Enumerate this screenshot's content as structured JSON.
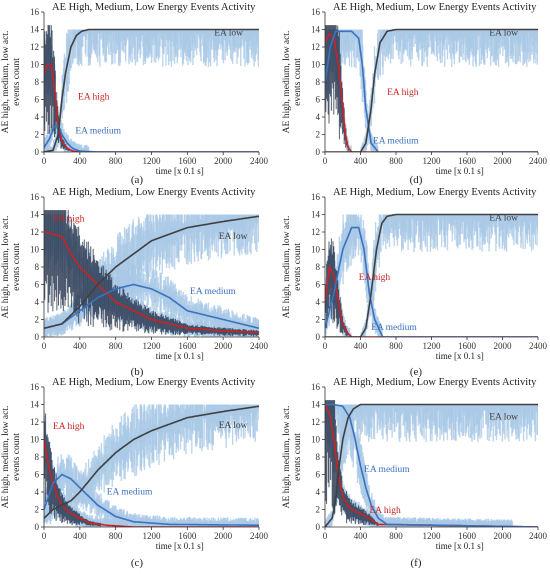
{
  "figure": {
    "panels_order": [
      "a",
      "d",
      "b",
      "e",
      "c",
      "f"
    ]
  },
  "colors": {
    "ea_high": "#cc2222",
    "ea_medium": "#3a72c0",
    "ea_low": "#404040",
    "band_light": "#a8c8e6",
    "noise_dark": "#2a3850",
    "axis": "#333333",
    "tick_text": "#333333"
  },
  "chart_data": [
    {
      "panel": "a",
      "type": "line",
      "caption": "(a)",
      "title": "AE High, Medium, Low Energy Events Activity",
      "xlabel": "time [x 0.1 s]",
      "ylabel": "AE high, medium, low act. events count",
      "xlim": [
        0,
        2400
      ],
      "ylim": [
        0,
        16
      ],
      "xticks": [
        0,
        400,
        800,
        1200,
        1600,
        2000,
        2400
      ],
      "yticks": [
        0,
        2,
        4,
        6,
        8,
        10,
        12,
        14,
        16
      ],
      "series": [
        {
          "name": "EA high",
          "x": [
            0,
            40,
            80,
            120,
            160,
            200,
            260,
            320,
            400,
            600,
            2400
          ],
          "y": [
            9,
            10,
            10,
            7,
            3,
            1.2,
            0.4,
            0.1,
            0,
            0,
            0
          ]
        },
        {
          "name": "EA medium",
          "x": [
            0,
            60,
            120,
            160,
            200,
            260,
            320,
            400,
            600,
            2400
          ],
          "y": [
            0.5,
            1.5,
            3,
            3,
            2,
            1,
            0.4,
            0.1,
            0,
            0
          ]
        },
        {
          "name": "EA low",
          "x": [
            0,
            100,
            160,
            200,
            240,
            300,
            360,
            420,
            500,
            700,
            2400
          ],
          "y": [
            0,
            0.2,
            2,
            6,
            9,
            12,
            13.3,
            13.8,
            14,
            14,
            14
          ]
        }
      ],
      "annotations": [
        {
          "text": "EA low",
          "x": 1900,
          "y": 13.3,
          "series": "EA low"
        },
        {
          "text": "EA high",
          "x": 380,
          "y": 6,
          "series": "EA high"
        },
        {
          "text": "EA medium",
          "x": 350,
          "y": 2.1,
          "series": "EA medium"
        }
      ]
    },
    {
      "panel": "d",
      "type": "line",
      "caption": "(d)",
      "title": "AE High, Medium, Low Energy Events Activity",
      "xlabel": "time [x 0.1 s]",
      "ylabel": "AE high, medium, low act. events count",
      "xlim": [
        0,
        2400
      ],
      "ylim": [
        0,
        16
      ],
      "xticks": [
        0,
        400,
        800,
        1200,
        1600,
        2000,
        2400
      ],
      "yticks": [
        0,
        2,
        4,
        6,
        8,
        10,
        12,
        14,
        16
      ],
      "series": [
        {
          "name": "EA high",
          "x": [
            0,
            50,
            100,
            150,
            200,
            230,
            260,
            300,
            2400
          ],
          "y": [
            12.5,
            13.5,
            13,
            10,
            5,
            2,
            0.5,
            0,
            0
          ]
        },
        {
          "name": "EA medium",
          "x": [
            0,
            60,
            120,
            200,
            300,
            380,
            420,
            460,
            520,
            600,
            2400
          ],
          "y": [
            8,
            12,
            13.8,
            13.8,
            13.8,
            13,
            10,
            5,
            1,
            0,
            0
          ]
        },
        {
          "name": "EA low",
          "x": [
            0,
            400,
            460,
            520,
            560,
            620,
            700,
            800,
            2400
          ],
          "y": [
            0,
            0,
            1,
            5,
            9,
            12.5,
            13.8,
            14,
            14
          ]
        }
      ],
      "annotations": [
        {
          "text": "EA low",
          "x": 1850,
          "y": 13.3,
          "series": "EA low"
        },
        {
          "text": "EA high",
          "x": 700,
          "y": 6.5,
          "series": "EA high"
        },
        {
          "text": "EA medium",
          "x": 540,
          "y": 1,
          "series": "EA medium"
        }
      ]
    },
    {
      "panel": "b",
      "type": "line",
      "caption": "(b)",
      "title": "AE High, Medium, Low Energy Events Activity",
      "xlabel": "time [x 0.1 s]",
      "ylabel": "AE high, medium, low act. events count",
      "xlim": [
        0,
        2400
      ],
      "ylim": [
        0,
        16
      ],
      "xticks": [
        0,
        400,
        800,
        1200,
        1600,
        2000,
        2400
      ],
      "yticks": [
        0,
        2,
        4,
        6,
        8,
        10,
        12,
        14,
        16
      ],
      "series": [
        {
          "name": "EA high",
          "x": [
            0,
            200,
            300,
            400,
            600,
            800,
            1000,
            1200,
            1600,
            2000,
            2400
          ],
          "y": [
            12,
            11.5,
            9.5,
            8,
            6,
            4,
            3,
            2,
            1,
            0.7,
            0.5
          ]
        },
        {
          "name": "EA medium",
          "x": [
            0,
            200,
            400,
            600,
            800,
            1000,
            1200,
            1400,
            1600,
            2000,
            2400
          ],
          "y": [
            1,
            1.5,
            3,
            4.5,
            5.5,
            6,
            5.5,
            4.5,
            3,
            2,
            1
          ]
        },
        {
          "name": "EA low",
          "x": [
            0,
            200,
            400,
            600,
            800,
            1000,
            1200,
            1600,
            2000,
            2400
          ],
          "y": [
            1,
            1.5,
            3.5,
            6,
            8,
            9.5,
            11,
            12.5,
            13.2,
            13.8
          ]
        }
      ],
      "annotations": [
        {
          "text": "EA low",
          "x": 1950,
          "y": 11.2,
          "series": "EA low"
        },
        {
          "text": "EA high",
          "x": 100,
          "y": 13.2,
          "series": "EA high"
        },
        {
          "text": "EA medium",
          "x": 1630,
          "y": 4.9,
          "series": "EA medium"
        }
      ]
    },
    {
      "panel": "e",
      "type": "line",
      "caption": "(e)",
      "title": "AE High, Medium, Low Energy Events Activity",
      "xlabel": "time [x 0.1 s]",
      "ylabel": "AE high, medium, low act. events count",
      "xlim": [
        0,
        2400
      ],
      "ylim": [
        0,
        16
      ],
      "xticks": [
        0,
        400,
        800,
        1200,
        1600,
        2000,
        2400
      ],
      "yticks": [
        0,
        2,
        4,
        6,
        8,
        10,
        12,
        14,
        16
      ],
      "series": [
        {
          "name": "EA high",
          "x": [
            0,
            50,
            100,
            150,
            200,
            250,
            300,
            2400
          ],
          "y": [
            4,
            8,
            7,
            4,
            1.5,
            0.5,
            0,
            0
          ]
        },
        {
          "name": "EA medium",
          "x": [
            0,
            100,
            200,
            300,
            380,
            440,
            500,
            560,
            650,
            2400
          ],
          "y": [
            1,
            5,
            10,
            12.5,
            12.5,
            10,
            5,
            2,
            0,
            0
          ]
        },
        {
          "name": "EA low",
          "x": [
            0,
            400,
            460,
            520,
            580,
            640,
            700,
            800,
            2400
          ],
          "y": [
            0,
            0,
            1,
            5,
            10,
            13,
            13.8,
            14,
            14
          ]
        }
      ],
      "annotations": [
        {
          "text": "EA low",
          "x": 1850,
          "y": 13.3,
          "series": "EA low"
        },
        {
          "text": "EA high",
          "x": 380,
          "y": 6.5,
          "series": "EA high"
        },
        {
          "text": "EA medium",
          "x": 520,
          "y": 0.8,
          "series": "EA medium"
        }
      ]
    },
    {
      "panel": "c",
      "type": "line",
      "caption": "(c)",
      "title": "AE High, Medium, Low Energy Events Activity",
      "xlabel": "time [x 0.1 s]",
      "ylabel": "AE high, medium, low act. events count",
      "xlim": [
        0,
        2400
      ],
      "ylim": [
        0,
        16
      ],
      "xticks": [
        0,
        400,
        800,
        1200,
        1600,
        2000,
        2400
      ],
      "yticks": [
        0,
        2,
        4,
        6,
        8,
        10,
        12,
        14,
        16
      ],
      "series": [
        {
          "name": "EA high",
          "x": [
            0,
            50,
            100,
            150,
            200,
            300,
            400,
            500,
            700,
            1000,
            2400
          ],
          "y": [
            10,
            7,
            5,
            3.5,
            2.5,
            1.5,
            1,
            0.5,
            0.2,
            0,
            0
          ]
        },
        {
          "name": "EA medium",
          "x": [
            0,
            100,
            200,
            300,
            400,
            500,
            600,
            800,
            1000,
            1400,
            2400
          ],
          "y": [
            2,
            5,
            6,
            5.5,
            4.5,
            3.5,
            2.5,
            1.2,
            0.6,
            0.3,
            0.2
          ]
        },
        {
          "name": "EA low",
          "x": [
            0,
            100,
            200,
            300,
            400,
            600,
            800,
            1000,
            1200,
            1600,
            2000,
            2400
          ],
          "y": [
            1,
            2,
            2.5,
            3,
            4,
            6.5,
            8.5,
            10,
            11,
            12.5,
            13.2,
            13.8
          ]
        }
      ],
      "annotations": [
        {
          "text": "EA low",
          "x": 1950,
          "y": 11.3,
          "series": "EA low"
        },
        {
          "text": "EA high",
          "x": 100,
          "y": 11.2,
          "series": "EA high"
        },
        {
          "text": "EA medium",
          "x": 700,
          "y": 3.7,
          "series": "EA medium"
        }
      ]
    },
    {
      "panel": "f",
      "type": "line",
      "caption": "(f)",
      "title": "AE High, Medium, Low Energy Events Activity",
      "xlabel": "time [x 0.1 s]",
      "ylabel": "AE high, medium, low act. events count",
      "xlim": [
        0,
        2400
      ],
      "ylim": [
        0,
        16
      ],
      "xticks": [
        0,
        400,
        800,
        1200,
        1600,
        2000,
        2400
      ],
      "yticks": [
        0,
        2,
        4,
        6,
        8,
        10,
        12,
        14,
        16
      ],
      "series": [
        {
          "name": "EA high",
          "x": [
            0,
            50,
            100,
            150,
            200,
            250,
            300,
            400,
            500,
            600,
            2400
          ],
          "y": [
            14,
            13,
            10,
            6,
            3.5,
            2.5,
            2,
            1.5,
            1,
            0.3,
            0
          ]
        },
        {
          "name": "EA medium",
          "x": [
            0,
            100,
            200,
            280,
            340,
            400,
            460,
            520,
            600,
            700,
            2400
          ],
          "y": [
            14,
            14,
            13.8,
            12.5,
            10,
            7,
            4.5,
            2.5,
            1,
            0.3,
            0
          ]
        },
        {
          "name": "EA low",
          "x": [
            0,
            80,
            120,
            160,
            200,
            260,
            320,
            400,
            500,
            2400
          ],
          "y": [
            0,
            1,
            3,
            7,
            10,
            12.5,
            13.5,
            14,
            14,
            14
          ]
        }
      ],
      "annotations": [
        {
          "text": "EA low",
          "x": 1850,
          "y": 12.3,
          "series": "EA low"
        },
        {
          "text": "EA high",
          "x": 500,
          "y": 1.6,
          "series": "EA high"
        },
        {
          "text": "EA medium",
          "x": 440,
          "y": 6.3,
          "series": "EA medium"
        }
      ]
    }
  ]
}
